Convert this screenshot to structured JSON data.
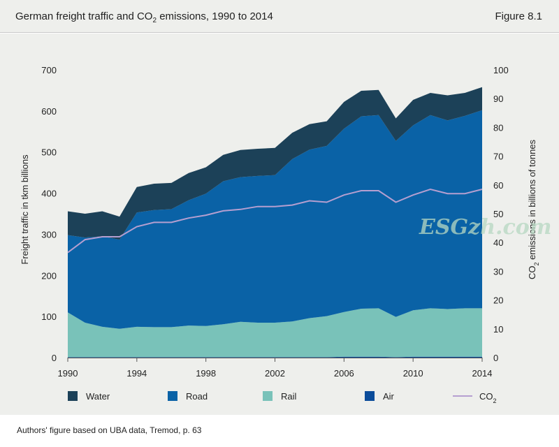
{
  "header": {
    "title_prefix": "German freight traffic and CO",
    "title_sub": "2",
    "title_suffix": " emissions, 1990 to 2014",
    "figure_label": "Figure 8.1"
  },
  "footer": {
    "source": "Authors' figure based on UBA data, Tremod, p. 63"
  },
  "watermark": "ESGzh.com",
  "colors": {
    "water": "#1c4158",
    "road": "#0a62a6",
    "rail": "#79c2b9",
    "air": "#0b4c9a",
    "co2": "#b59fd0",
    "background": "#eeefec"
  },
  "chart_data": {
    "type": "area",
    "title": "German freight traffic and CO2 emissions, 1990 to 2014",
    "x": [
      1990,
      1991,
      1992,
      1993,
      1994,
      1995,
      1996,
      1997,
      1998,
      1999,
      2000,
      2001,
      2002,
      2003,
      2004,
      2005,
      2006,
      2007,
      2008,
      2009,
      2010,
      2011,
      2012,
      2013,
      2014
    ],
    "x_ticks": [
      "1990",
      "1994",
      "1998",
      "2002",
      "2006",
      "2010",
      "2014"
    ],
    "ylim": [
      0,
      700
    ],
    "y_ticks": [
      "0",
      "100",
      "200",
      "300",
      "400",
      "500",
      "600",
      "700"
    ],
    "ylabel": "Freight traffic in tkm billions",
    "y2lim": [
      0,
      100
    ],
    "y2_ticks": [
      "0",
      "10",
      "20",
      "30",
      "40",
      "50",
      "60",
      "70",
      "80",
      "90",
      "100"
    ],
    "y2label_prefix": "CO",
    "y2label_sub": "2",
    "y2label_suffix": " emissions in billions of tonnes",
    "stacked": true,
    "series": [
      {
        "key": "air",
        "name": "Air",
        "values": [
          1,
          1,
          1,
          1,
          1,
          1,
          1,
          1,
          1,
          1,
          1,
          1,
          1,
          1,
          1,
          1,
          2,
          2,
          2,
          1,
          2,
          2,
          2,
          2,
          2
        ]
      },
      {
        "key": "rail",
        "name": "Rail",
        "values": [
          109,
          84,
          74,
          69,
          74,
          73,
          73,
          77,
          76,
          80,
          86,
          84,
          84,
          87,
          95,
          100,
          109,
          117,
          118,
          98,
          113,
          118,
          116,
          118,
          118
        ]
      },
      {
        "key": "road",
        "name": "Road",
        "values": [
          188,
          207,
          220,
          217,
          278,
          285,
          287,
          305,
          322,
          348,
          352,
          357,
          359,
          395,
          410,
          414,
          446,
          468,
          470,
          428,
          450,
          470,
          459,
          468,
          482
        ]
      },
      {
        "key": "water",
        "name": "Water",
        "values": [
          58,
          58,
          61,
          56,
          62,
          64,
          64,
          66,
          64,
          64,
          66,
          66,
          66,
          64,
          62,
          60,
          65,
          62,
          61,
          55,
          62,
          54,
          61,
          56,
          56
        ]
      }
    ],
    "line_series": {
      "key": "co2",
      "name": "CO2",
      "axis": "right",
      "values": [
        36.5,
        41,
        42,
        42,
        45.5,
        47,
        47,
        48.5,
        49.5,
        51,
        51.5,
        52.5,
        52.5,
        53,
        54.5,
        54,
        56.5,
        58,
        58,
        54,
        56.5,
        58.5,
        57,
        57,
        58.5
      ]
    },
    "legend": [
      {
        "key": "water",
        "label": "Water"
      },
      {
        "key": "road",
        "label": "Road"
      },
      {
        "key": "rail",
        "label": "Rail"
      },
      {
        "key": "air",
        "label": "Air"
      },
      {
        "key": "co2",
        "label_prefix": "CO",
        "label_sub": "2"
      }
    ]
  }
}
